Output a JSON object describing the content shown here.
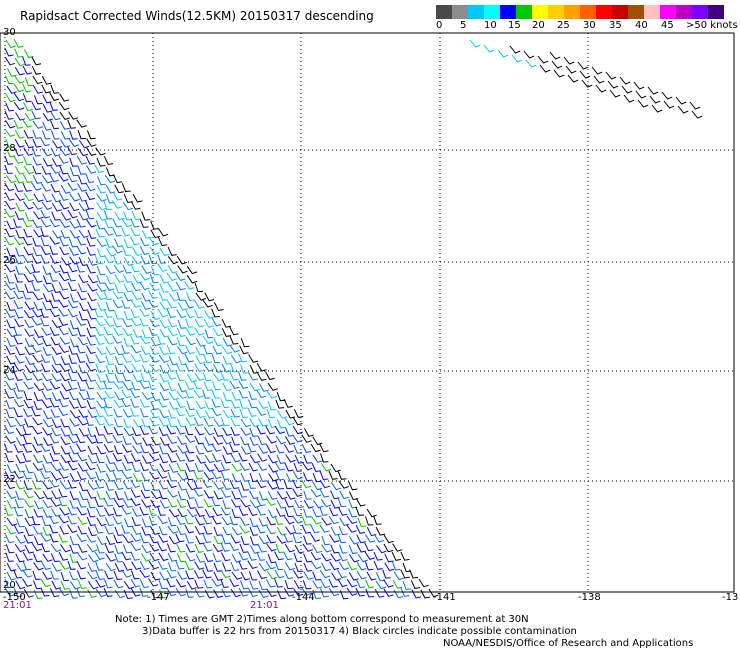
{
  "title": "Rapidsact Corrected Winds(12.5KM) 20150317 descending",
  "legend": {
    "colors": [
      "#4a4a4a",
      "#8c8c8c",
      "#00c8ff",
      "#00ffff",
      "#0000ff",
      "#00c800",
      "#ffff00",
      "#ffd000",
      "#ffa000",
      "#ff6000",
      "#ff0000",
      "#c80000",
      "#a05000",
      "#ffc0c0",
      "#ff00ff",
      "#c000c0",
      "#8000ff",
      "#400080"
    ],
    "labels": [
      "0",
      "5",
      "10",
      "15",
      "20",
      "25",
      "30",
      "35",
      "40",
      "45",
      ">50 knots"
    ]
  },
  "axes": {
    "x_ticks": [
      "-150",
      "-147",
      "-144",
      "-141",
      "-138",
      "-13"
    ],
    "y_ticks": [
      "30",
      "28",
      "26",
      "24",
      "22",
      "20"
    ]
  },
  "times": [
    "21:01",
    "21:01"
  ],
  "notes": [
    "Note: 1) Times are GMT 2)Times along bottom correspond to measurement at 30N",
    "3)Data buffer is 22 hrs from 20150317 4) Black circles indicate possible contamination",
    "NOAA/NESDIS/Office of Research and Applications"
  ]
}
